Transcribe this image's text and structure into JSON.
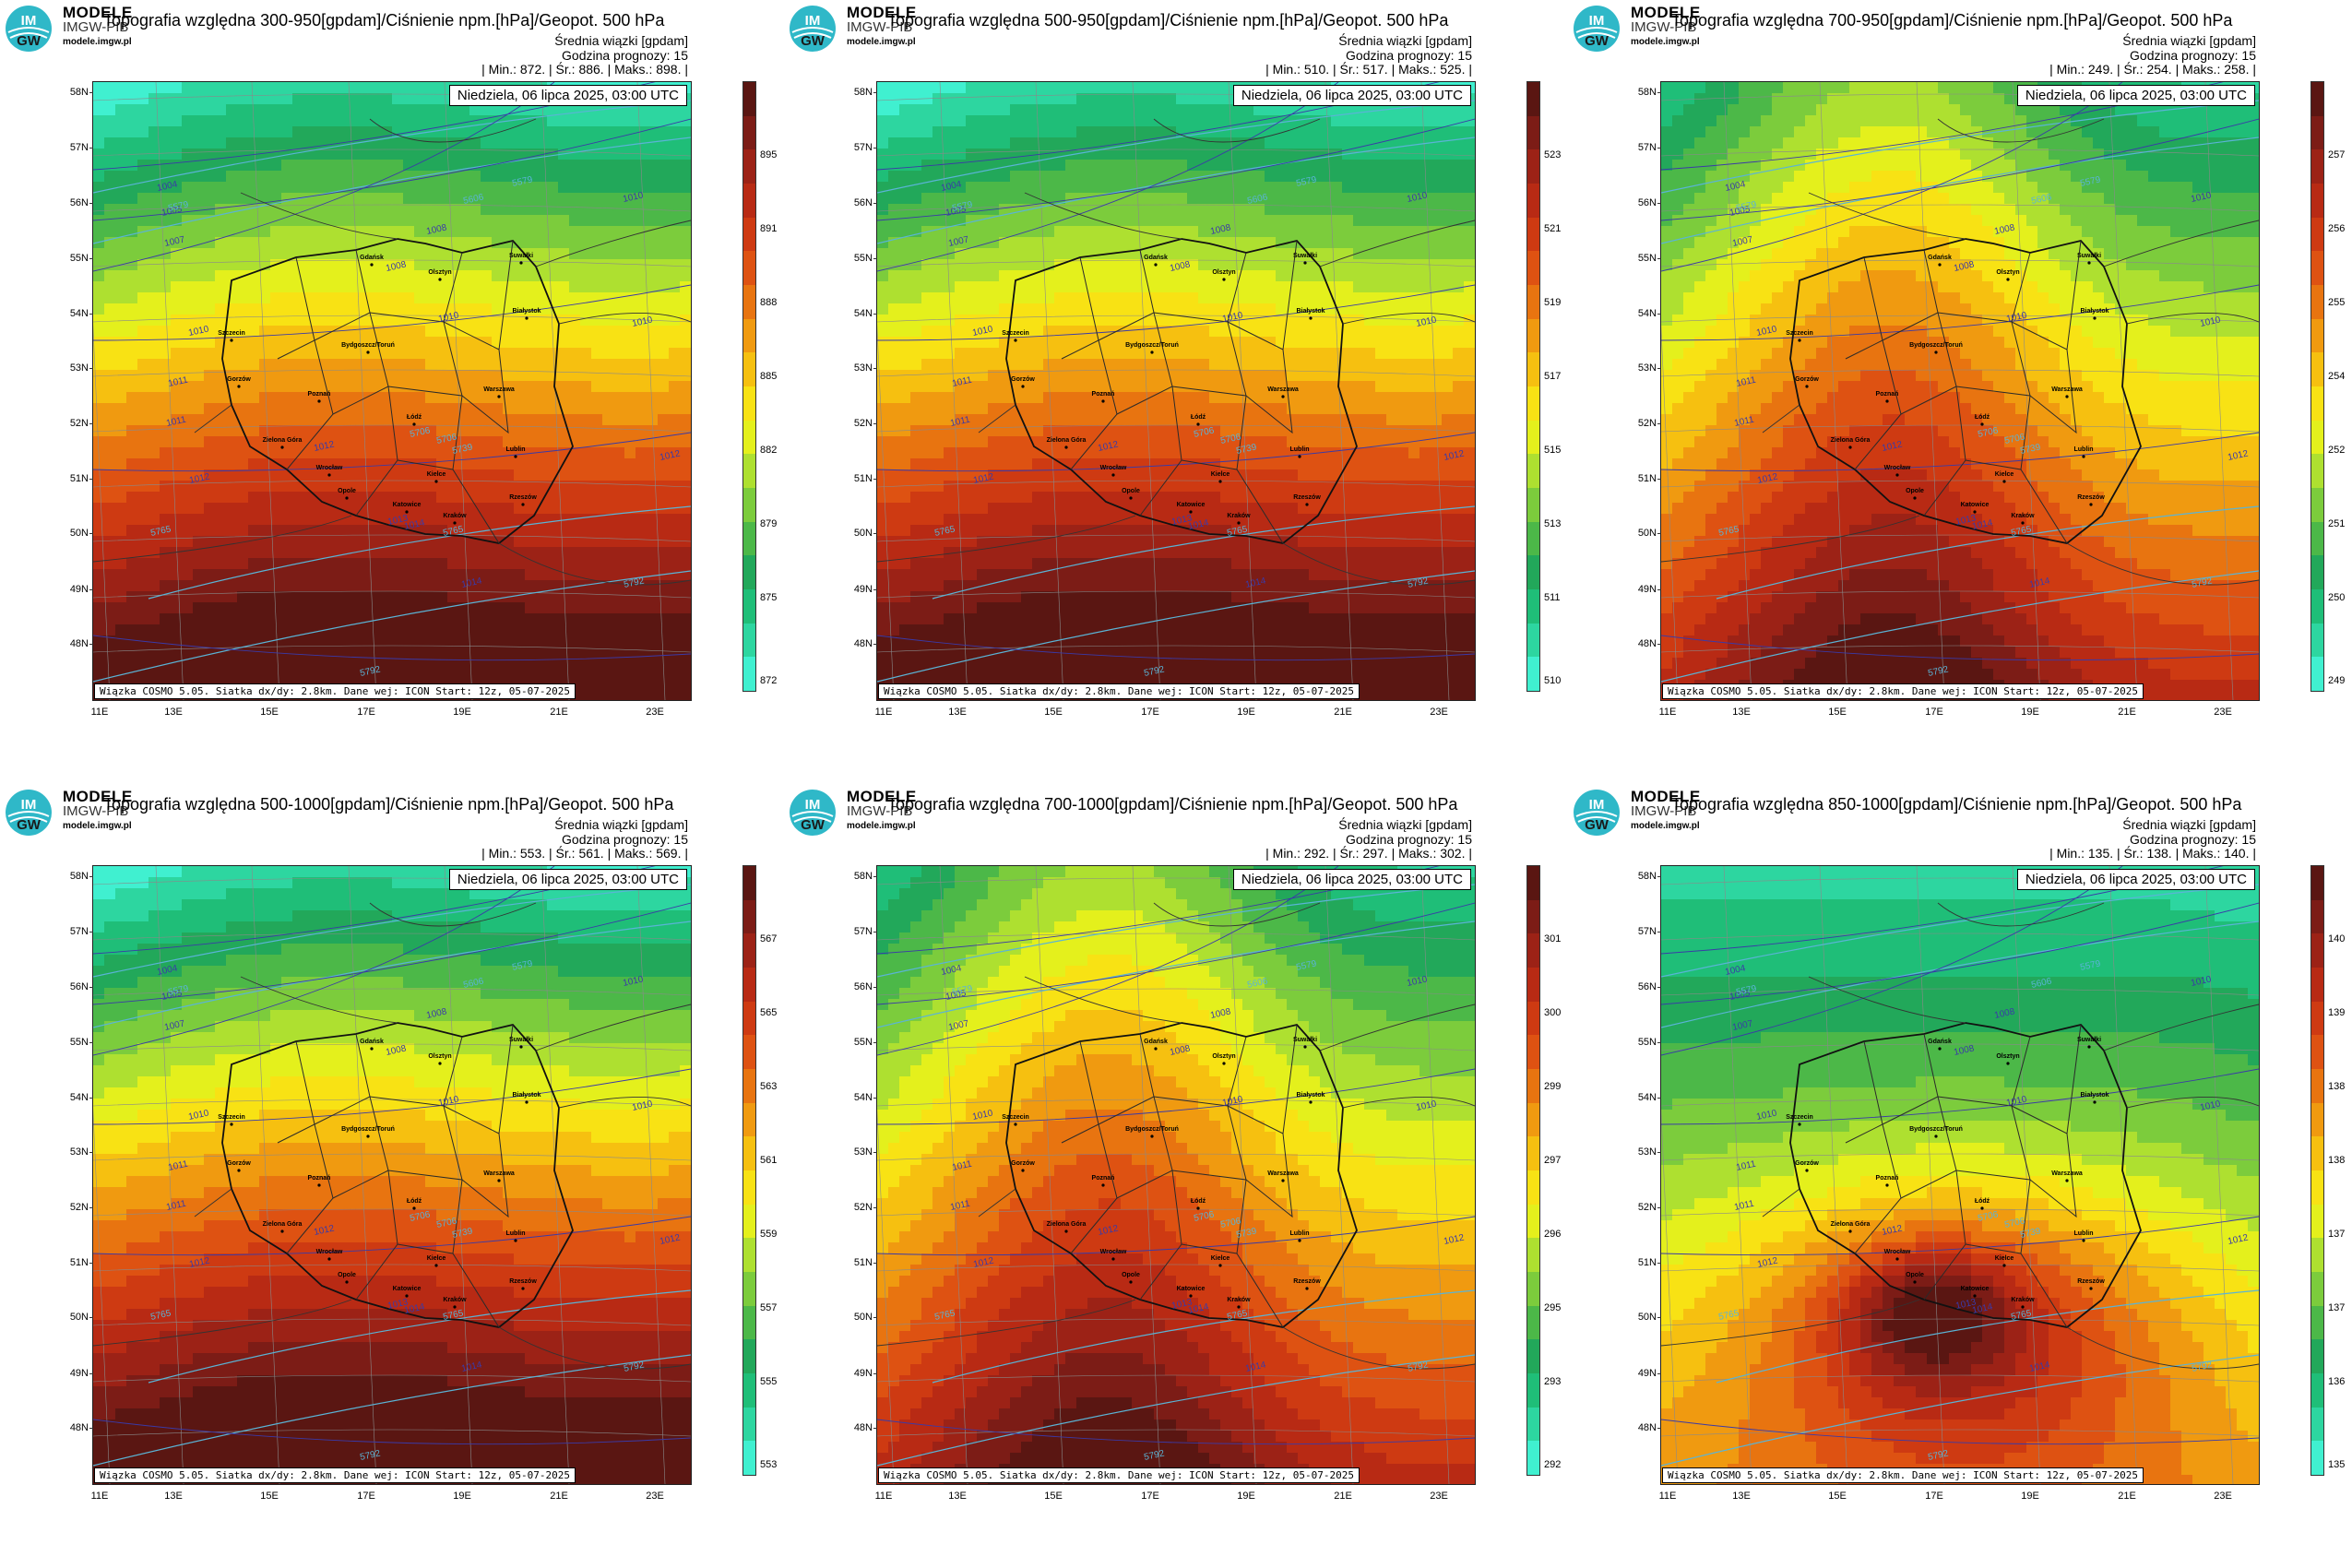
{
  "brand": {
    "logo_text_top": "IM",
    "logo_text_bottom": "GW",
    "line1": "MODELE",
    "line2": "IMGW-PIB",
    "line3": "modele.imgw.pl"
  },
  "common": {
    "subtitle1": "Średnia wiązki [gpdam]",
    "subtitle2": "Godzina prognozy: 15",
    "date": "Niedziela, 06 lipca 2025, 03:00 UTC",
    "footer": "Wiązka COSMO 5.05. Siatka dx/dy: 2.8km. Dane wej: ICON Start: 12z, 05-07-2025",
    "lat_labels": [
      "58N",
      "57N",
      "56N",
      "55N",
      "54N",
      "53N",
      "52N",
      "51N",
      "50N",
      "49N",
      "48N"
    ],
    "lon_labels": [
      "11E",
      "13E",
      "15E",
      "17E",
      "19E",
      "21E",
      "23E"
    ]
  },
  "colors": {
    "scale": [
      "#40f0d0",
      "#2dd6a0",
      "#1fbe78",
      "#22a85a",
      "#4cb848",
      "#7ccc3c",
      "#aee030",
      "#e4f01c",
      "#f8e214",
      "#f6c010",
      "#f09a10",
      "#e87410",
      "#de5212",
      "#ce3a12",
      "#b82a14",
      "#9c2216",
      "#7c1c16",
      "#5a1612"
    ],
    "border": "#111111",
    "isobar": "#3a3aa8",
    "isohypse": "#5ab4d6"
  },
  "panels": [
    {
      "title": "Topografia względna 300-950[gpdam]/Ciśnienie npm.[hPa]/Geopot. 500 hPa",
      "stats": "| Min.:  872. | Śr.:  886. | Maks.:  898. |",
      "colorbar": [
        "872",
        "875",
        "879",
        "882",
        "885",
        "888",
        "891",
        "895"
      ],
      "field": "zonal"
    },
    {
      "title": "Topografia względna 500-950[gpdam]/Ciśnienie npm.[hPa]/Geopot. 500 hPa",
      "stats": "| Min.:  510. | Śr.:  517. | Maks.:  525. |",
      "colorbar": [
        "510",
        "511",
        "513",
        "515",
        "517",
        "519",
        "521",
        "523"
      ],
      "field": "zonal"
    },
    {
      "title": "Topografia względna 700-950[gpdam]/Ciśnienie npm.[hPa]/Geopot. 500 hPa",
      "stats": "| Min.:  249. | Śr.:  254. | Maks.:  258. |",
      "colorbar": [
        "249",
        "250",
        "251",
        "252",
        "254",
        "255",
        "256",
        "257"
      ],
      "field": "tongue"
    },
    {
      "title": "Topografia względna 500-1000[gpdam]/Ciśnienie npm.[hPa]/Geopot. 500 hPa",
      "stats": "| Min.:  553. | Śr.:  561. | Maks.:  569. |",
      "colorbar": [
        "553",
        "555",
        "557",
        "559",
        "561",
        "563",
        "565",
        "567"
      ],
      "field": "zonal"
    },
    {
      "title": "Topografia względna 700-1000[gpdam]/Ciśnienie npm.[hPa]/Geopot. 500 hPa",
      "stats": "| Min.:  292. | Śr.:  297. | Maks.:  302. |",
      "colorbar": [
        "292",
        "293",
        "295",
        "296",
        "297",
        "299",
        "300",
        "301"
      ],
      "field": "tongue"
    },
    {
      "title": "Topografia względna 850-1000[gpdam]/Ciśnienie npm.[hPa]/Geopot. 500 hPa",
      "stats": "| Min.:  135. | Śr.:  138. | Maks.:  140. |",
      "colorbar": [
        "135",
        "136",
        "137",
        "137",
        "138",
        "138",
        "139",
        "140"
      ],
      "field": "hotspot"
    }
  ],
  "cities": [
    "Gdańsk",
    "Olsztyn",
    "Szczecin",
    "Bydgoszcz/Toruń",
    "Białystok",
    "Gorzów",
    "Poznań",
    "Warszawa",
    "Łódź",
    "Zielona Góra",
    "Lublin",
    "Wrocław",
    "Kielce",
    "Opole",
    "Katowice",
    "Kraków",
    "Rzeszów",
    "Suwałki"
  ],
  "contour_labels": {
    "isobars": [
      "1004",
      "1005",
      "1007",
      "1008",
      "1008",
      "1010",
      "1010",
      "1011",
      "1011",
      "1012",
      "1012",
      "1013",
      "1014",
      "1014",
      "1010",
      "1010",
      "1012"
    ],
    "isohypses": [
      "5579",
      "5606",
      "5706",
      "5706",
      "5739",
      "5765",
      "5765",
      "5792",
      "5792",
      "5579"
    ]
  }
}
